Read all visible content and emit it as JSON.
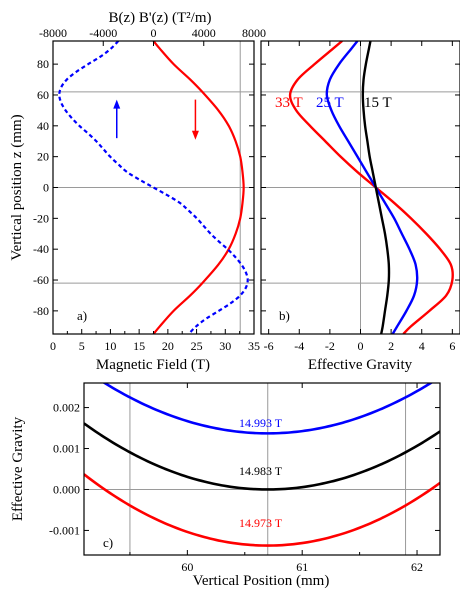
{
  "chart_data": [
    {
      "panel": "a)",
      "type": "line",
      "xlabel": "Magnetic Field (T)",
      "ylabel": "Vertical position z (mm)",
      "xlim": [
        0,
        35
      ],
      "ylim": [
        -95,
        95
      ],
      "xticks": [
        0,
        5,
        10,
        15,
        20,
        25,
        30,
        35
      ],
      "yticks": [
        -80,
        -60,
        -40,
        -20,
        0,
        20,
        40,
        60,
        80
      ],
      "x2label": "B(z) B'(z) (T²/m)",
      "x2lim": [
        -8000,
        8000
      ],
      "x2ticks": [
        -8000,
        -4000,
        0,
        4000,
        8000
      ],
      "grid": {
        "vertical": [],
        "horizontal": [
          0,
          62,
          -62
        ]
      },
      "series": [
        {
          "name": "B(z)",
          "axis": "bottom",
          "color": "#ff0000",
          "style": "solid",
          "z": [
            95,
            90,
            80,
            70,
            62,
            50,
            40,
            30,
            20,
            10,
            0,
            -10,
            -20,
            -30,
            -40,
            -50,
            -62,
            -70,
            -80,
            -90,
            -95
          ],
          "x": [
            17.5,
            18.6,
            21.0,
            23.9,
            26.0,
            28.8,
            30.6,
            31.8,
            32.6,
            33.0,
            33.2,
            33.0,
            32.6,
            31.8,
            30.6,
            28.8,
            26.0,
            23.9,
            21.0,
            18.6,
            17.5
          ]
        },
        {
          "name": "B(z) B'(z)",
          "axis": "top",
          "color": "#0000ff",
          "style": "dashed",
          "z": [
            95,
            90,
            85,
            80,
            75,
            70,
            65,
            60,
            55,
            50,
            45,
            40,
            35,
            30,
            25,
            20,
            15,
            10,
            5,
            0,
            -5,
            -10,
            -15,
            -20,
            -25,
            -30,
            -35,
            -40,
            -45,
            -50,
            -55,
            -60,
            -65,
            -70,
            -75,
            -80,
            -85,
            -90,
            -95
          ],
          "x": [
            -2800,
            -3400,
            -4200,
            -5200,
            -6150,
            -6900,
            -7350,
            -7500,
            -7350,
            -7000,
            -6500,
            -5900,
            -5200,
            -4550,
            -4000,
            -3450,
            -2800,
            -2100,
            -1100,
            0,
            1100,
            2100,
            2800,
            3450,
            4000,
            4550,
            5200,
            5900,
            6500,
            7000,
            7350,
            7500,
            7350,
            6900,
            6150,
            5200,
            4200,
            3400,
            2800
          ]
        }
      ],
      "arrows": [
        {
          "color": "#0000ff",
          "direction": "up",
          "x": 11.1,
          "z_from": 32,
          "z_to": 57
        },
        {
          "color": "#ff0000",
          "direction": "down",
          "x": 24.8,
          "z_from": 57,
          "z_to": 31
        }
      ]
    },
    {
      "panel": "b)",
      "type": "line",
      "xlabel": "Effective Gravity",
      "xlim": [
        -6.5,
        6.5
      ],
      "ylim": [
        -95,
        95
      ],
      "xticks": [
        -6,
        -4,
        -2,
        0,
        2,
        4,
        6
      ],
      "yticks": [
        -80,
        -60,
        -40,
        -20,
        0,
        20,
        40,
        60,
        80
      ],
      "grid": {
        "vertical": [
          0
        ],
        "horizontal": [
          0,
          62,
          -62
        ]
      },
      "series": [
        {
          "name": "33 T",
          "color": "#ff0000",
          "z": [
            95,
            90,
            80,
            70,
            60,
            50,
            40,
            30,
            20,
            10,
            0,
            -10,
            -20,
            -30,
            -40,
            -50,
            -60,
            -70,
            -80,
            -90,
            -95
          ],
          "x": [
            -1.2,
            -1.8,
            -3.0,
            -4.1,
            -4.6,
            -4.2,
            -3.3,
            -2.3,
            -1.3,
            -0.2,
            1.0,
            2.2,
            3.3,
            4.3,
            5.2,
            5.9,
            6.0,
            5.6,
            4.5,
            3.3,
            2.8
          ]
        },
        {
          "name": "25 T",
          "color": "#0000ff",
          "z": [
            95,
            90,
            80,
            70,
            60,
            50,
            40,
            30,
            20,
            10,
            0,
            -10,
            -20,
            -30,
            -40,
            -50,
            -60,
            -70,
            -80,
            -90,
            -95
          ],
          "x": [
            -0.2,
            -0.6,
            -1.4,
            -2.0,
            -2.2,
            -1.9,
            -1.4,
            -0.8,
            -0.2,
            0.4,
            1.0,
            1.6,
            2.2,
            2.7,
            3.2,
            3.6,
            3.7,
            3.5,
            3.0,
            2.4,
            2.1
          ]
        },
        {
          "name": "15 T",
          "color": "#000000",
          "z": [
            95,
            90,
            80,
            70,
            60,
            50,
            40,
            30,
            20,
            10,
            0,
            -10,
            -20,
            -30,
            -40,
            -50,
            -60,
            -70,
            -80,
            -90,
            -95
          ],
          "x": [
            0.65,
            0.55,
            0.35,
            0.2,
            0.15,
            0.2,
            0.3,
            0.45,
            0.6,
            0.8,
            1.0,
            1.2,
            1.4,
            1.6,
            1.75,
            1.85,
            1.85,
            1.75,
            1.6,
            1.45,
            1.35
          ]
        }
      ]
    },
    {
      "panel": "c)",
      "type": "line",
      "xlabel": "Vertical Position (mm)",
      "ylabel": "Effective Gravity",
      "xlim": [
        59.1,
        62.2
      ],
      "ylim": [
        -0.0016,
        0.0026
      ],
      "xticks": [
        60,
        61,
        62
      ],
      "yticks": [
        -0.001,
        0.0,
        0.001,
        0.002
      ],
      "ytick_labels": [
        "-0.001",
        "0.000",
        "0.001",
        "0.002"
      ],
      "grid": {
        "vertical": [
          59.5,
          60.7,
          61.9
        ],
        "horizontal": [
          0.0
        ]
      },
      "series": [
        {
          "name": "14.993 T",
          "color": "#0000ff",
          "vertex": [
            60.7,
            0.00137
          ],
          "curvature": 0.00061
        },
        {
          "name": "14.983 T",
          "color": "#000000",
          "vertex": [
            60.7,
            0.0
          ],
          "curvature": 0.00063
        },
        {
          "name": "14.973 T",
          "color": "#ff0000",
          "vertex": [
            60.7,
            -0.00137
          ],
          "curvature": 0.00068
        }
      ]
    }
  ]
}
